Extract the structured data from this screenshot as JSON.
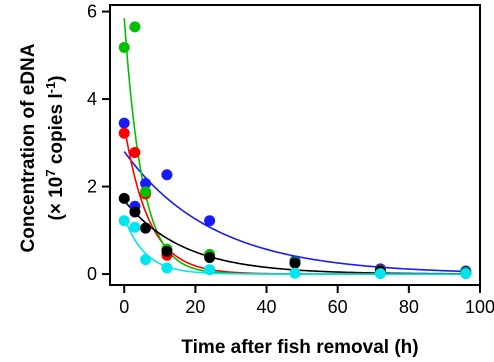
{
  "chart_data": {
    "type": "scatter",
    "title": "",
    "xlabel": "Time after fish removal (h)",
    "ylabel_line1": "Concentration of eDNA",
    "ylabel_line2_prefix": "(× 10",
    "ylabel_line2_sup1": "7",
    "ylabel_line2_mid": " copies l",
    "ylabel_line2_sup2": "-1",
    "ylabel_line2_suffix": ")",
    "xlim": [
      -4,
      100
    ],
    "ylim": [
      -0.25,
      6.15
    ],
    "x_ticks": [
      0,
      20,
      40,
      60,
      80,
      100
    ],
    "x_tick_labels": [
      "0",
      "20",
      "40",
      "60",
      "80",
      "100"
    ],
    "y_ticks": [
      0,
      2,
      4,
      6
    ],
    "y_tick_labels": [
      "0",
      "2",
      "4",
      "6"
    ],
    "grid": false,
    "legend": "none",
    "series": [
      {
        "color": "#1a1aff",
        "points": [
          [
            0,
            3.45
          ],
          [
            3,
            1.55
          ],
          [
            6,
            2.07
          ],
          [
            12,
            2.27
          ],
          [
            24,
            1.22
          ],
          [
            48,
            0.3
          ],
          [
            72,
            0.12
          ],
          [
            96,
            0.07
          ]
        ],
        "fit": {
          "a": 2.8,
          "k": 0.04
        }
      },
      {
        "color": "#ff0000",
        "points": [
          [
            0,
            3.22
          ],
          [
            3,
            2.78
          ],
          [
            6,
            1.83
          ],
          [
            12,
            0.43
          ],
          [
            24,
            0.43
          ],
          [
            48,
            0.25
          ],
          [
            72,
            0.09
          ],
          [
            96,
            0.03
          ]
        ],
        "fit": {
          "a": 3.4,
          "k": 0.145
        }
      },
      {
        "color": "#00c000",
        "points": [
          [
            0,
            5.18
          ],
          [
            3,
            5.65
          ],
          [
            6,
            1.88
          ],
          [
            12,
            0.57
          ],
          [
            24,
            0.45
          ],
          [
            48,
            0.27
          ],
          [
            72,
            0.08
          ],
          [
            96,
            0.04
          ]
        ],
        "fit": {
          "a": 5.85,
          "k": 0.195
        }
      },
      {
        "color": "#000000",
        "points": [
          [
            0,
            1.73
          ],
          [
            3,
            1.42
          ],
          [
            6,
            1.05
          ],
          [
            12,
            0.52
          ],
          [
            24,
            0.38
          ],
          [
            48,
            0.25
          ],
          [
            72,
            0.07
          ],
          [
            96,
            0.02
          ]
        ],
        "fit": {
          "a": 1.68,
          "k": 0.06
        }
      },
      {
        "color": "#00e5ee",
        "points": [
          [
            0,
            1.22
          ],
          [
            3,
            1.07
          ],
          [
            6,
            0.33
          ],
          [
            12,
            0.14
          ],
          [
            24,
            0.1
          ],
          [
            48,
            0.02
          ],
          [
            72,
            0.01
          ],
          [
            96,
            0.01
          ]
        ],
        "fit": {
          "a": 1.3,
          "k": 0.17
        }
      }
    ]
  }
}
